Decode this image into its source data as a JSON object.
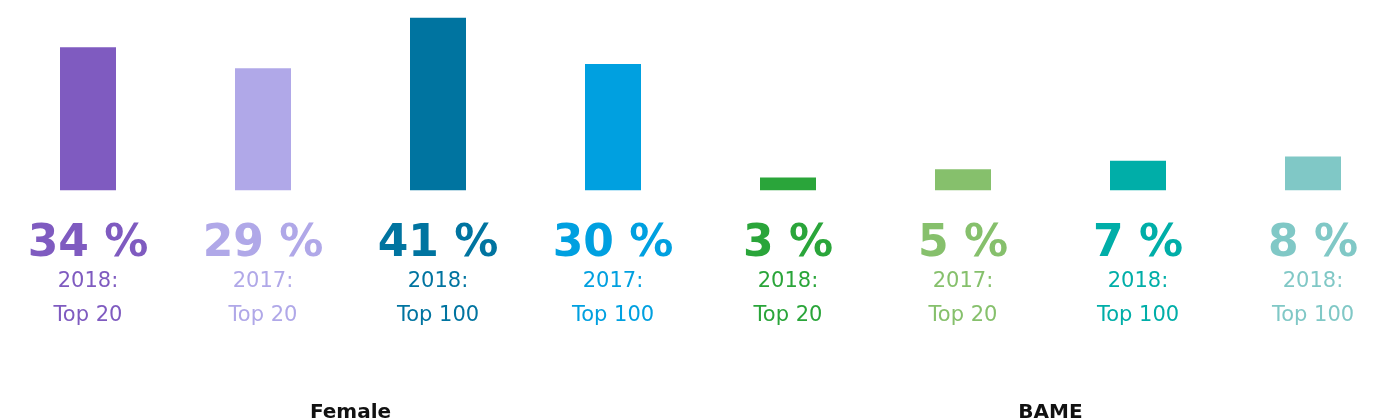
{
  "chart_data": {
    "type": "bar",
    "categories": [
      "2018:\nTop 20",
      "2017:\nTop 20",
      "2018:\nTop 100",
      "2017:\nTop 100",
      "2018:\nTop 20",
      "2017:\nTop 20",
      "2018:\nTop 100",
      "2018:\nTop 100"
    ],
    "values": [
      34,
      29,
      41,
      30,
      3,
      5,
      7,
      8
    ],
    "colors": [
      "#7f5bc0",
      "#b0a8e8",
      "#0074a0",
      "#00a0e0",
      "#2aa53a",
      "#86c06c",
      "#00aea8",
      "#80c8c6"
    ],
    "value_labels": [
      "34 %",
      "29 %",
      "41 %",
      "30 %",
      "3 %",
      "5 %",
      "7 %",
      "8 %"
    ],
    "ylim": [
      0,
      41
    ],
    "annotations": [
      "Female",
      "BAME"
    ],
    "grid": false
  }
}
